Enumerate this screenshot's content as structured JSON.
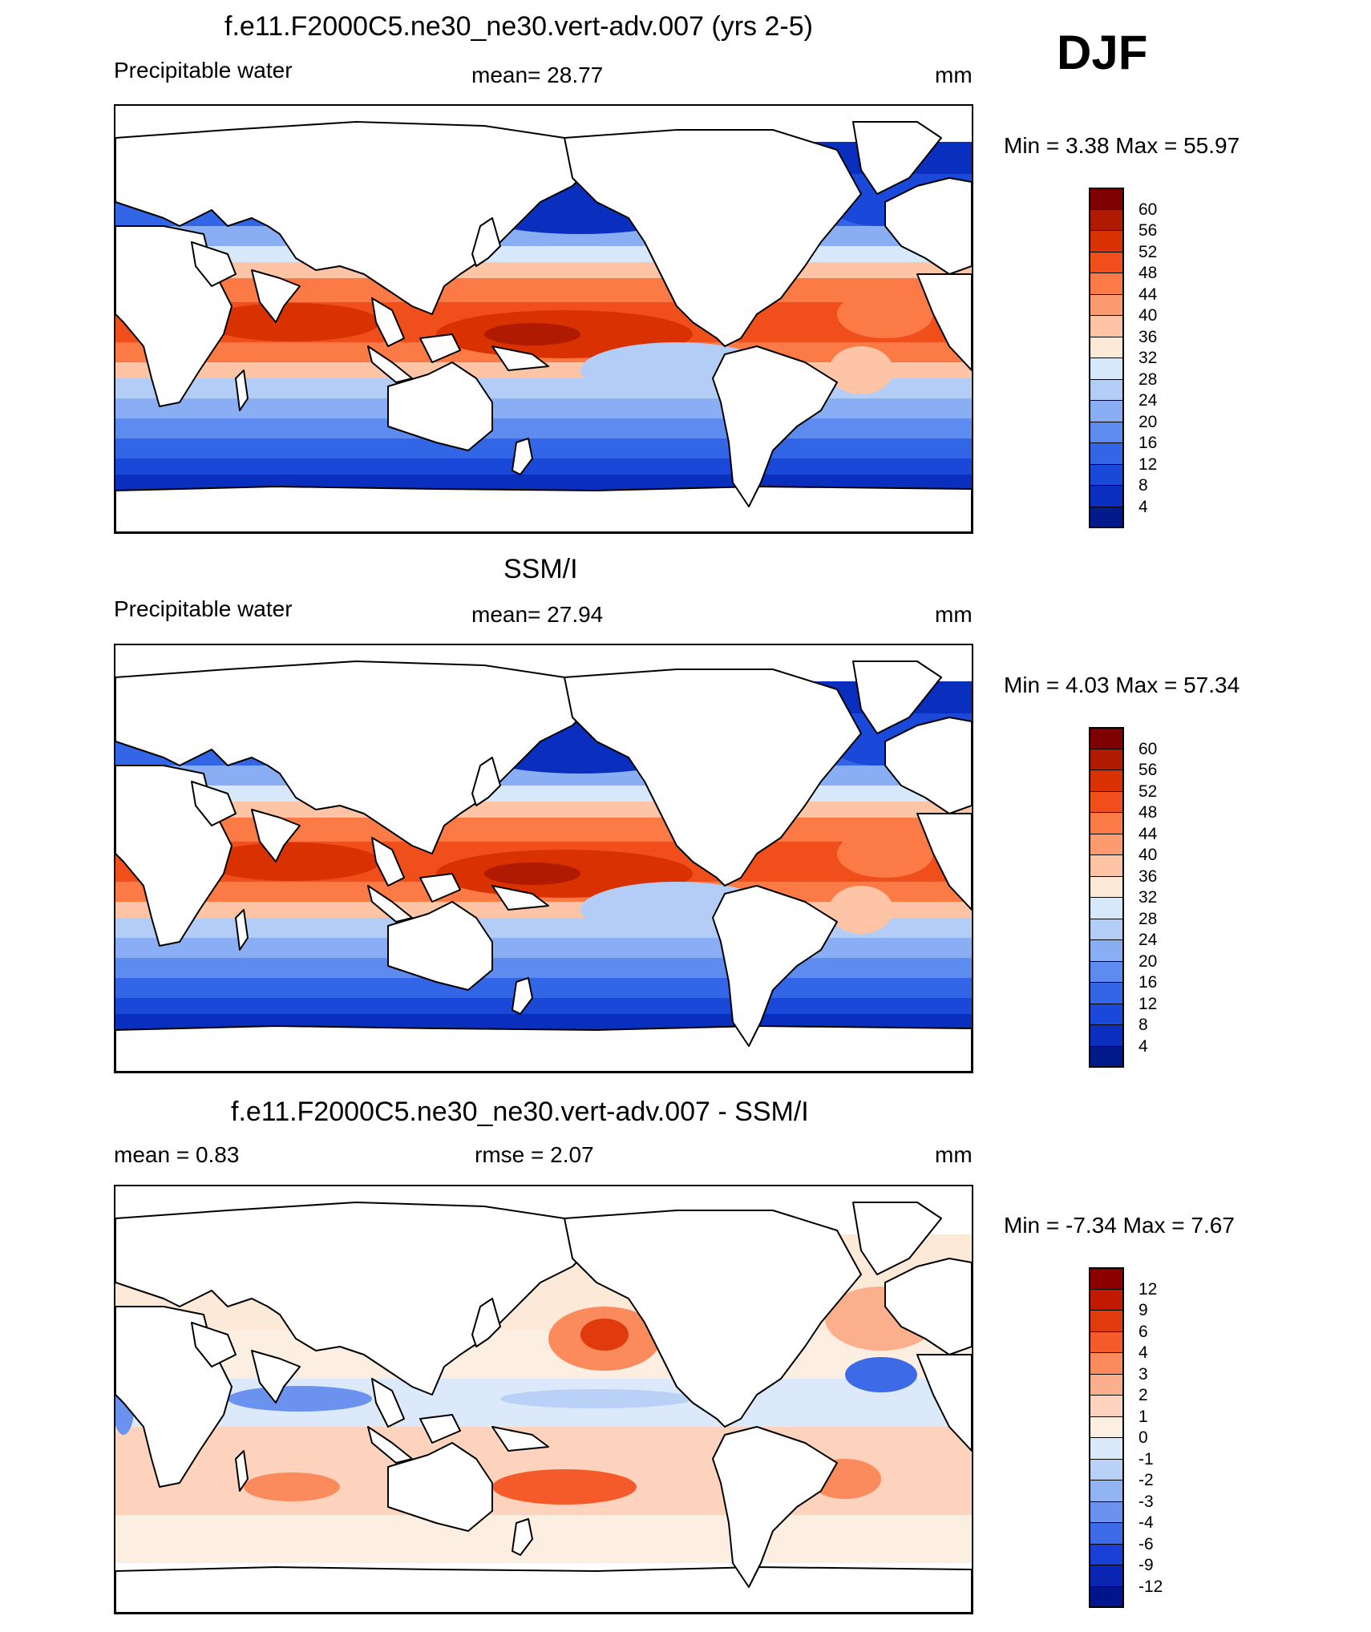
{
  "season": "DJF",
  "panels": [
    {
      "id": "model",
      "title": "f.e11.F2000C5.ne30_ne30.vert-adv.007 (yrs 2-5)",
      "left_label": "Precipitable water",
      "center_label": "mean=  28.77",
      "units": "mm",
      "minmax": "Min =   3.38 Max =  55.97",
      "colorbar": {
        "labels": [
          "60",
          "56",
          "52",
          "48",
          "44",
          "40",
          "36",
          "32",
          "28",
          "24",
          "20",
          "16",
          "12",
          "8",
          "4"
        ],
        "colors": [
          "#7f0000",
          "#b01a00",
          "#d93200",
          "#f04e1a",
          "#fb7a45",
          "#fc9b70",
          "#fdc4a5",
          "#fde9d8",
          "#d7e8fb",
          "#b3cdf7",
          "#8aaef3",
          "#5d8bef",
          "#3366e6",
          "#1a48d9",
          "#0a2fbf",
          "#001a8c"
        ]
      }
    },
    {
      "id": "obs",
      "title": "SSM/I",
      "left_label": "Precipitable water",
      "center_label": "mean=  27.94",
      "units": "mm",
      "minmax": "Min =   4.03 Max =  57.34",
      "colorbar": {
        "labels": [
          "60",
          "56",
          "52",
          "48",
          "44",
          "40",
          "36",
          "32",
          "28",
          "24",
          "20",
          "16",
          "12",
          "8",
          "4"
        ],
        "colors": [
          "#7f0000",
          "#b01a00",
          "#d93200",
          "#f04e1a",
          "#fb7a45",
          "#fc9b70",
          "#fdc4a5",
          "#fde9d8",
          "#d7e8fb",
          "#b3cdf7",
          "#8aaef3",
          "#5d8bef",
          "#3366e6",
          "#1a48d9",
          "#0a2fbf",
          "#001a8c"
        ]
      }
    },
    {
      "id": "diff",
      "title": "f.e11.F2000C5.ne30_ne30.vert-adv.007 - SSM/I",
      "left_label": "mean =   0.83",
      "center_label": "rmse =   2.07",
      "units": "mm",
      "minmax": "Min =  -7.34 Max =   7.67",
      "colorbar": {
        "labels": [
          "12",
          "9",
          "6",
          "4",
          "3",
          "2",
          "1",
          "0",
          "-1",
          "-2",
          "-3",
          "-4",
          "-6",
          "-9",
          "-12"
        ],
        "colors": [
          "#8c0000",
          "#c21a00",
          "#e03a0d",
          "#f45a2a",
          "#fb8a5c",
          "#fcaf8c",
          "#fdd3bd",
          "#fdeee2",
          "#dbe9fa",
          "#b9d1f6",
          "#92b3f2",
          "#6a92ee",
          "#3d6ae6",
          "#1a3fd6",
          "#0a25b3",
          "#00148c"
        ]
      }
    }
  ]
}
